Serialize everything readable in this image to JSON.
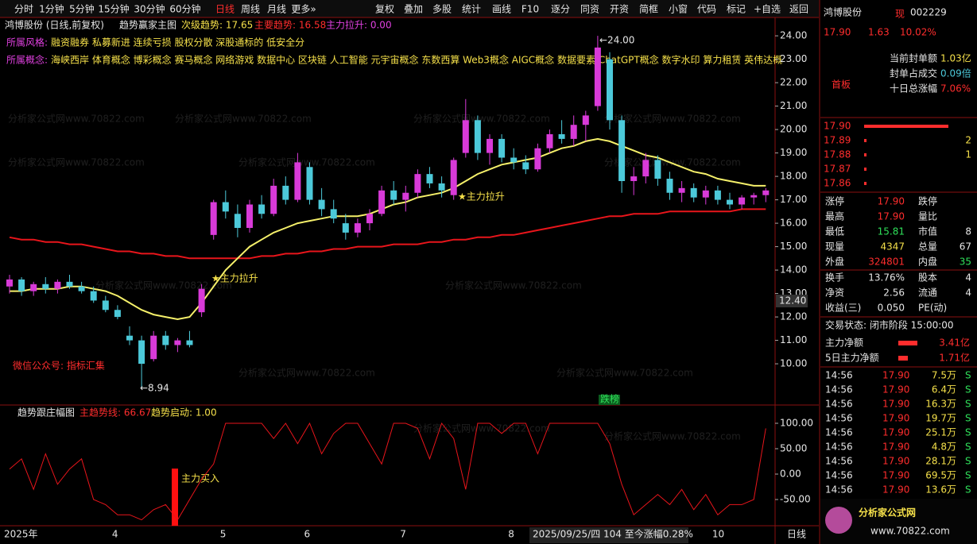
{
  "toolbar": {
    "left": [
      "分时",
      "1分钟",
      "5分钟",
      "15分钟",
      "30分钟",
      "60分钟",
      "日线",
      "周线",
      "月线",
      "更多»"
    ],
    "right": [
      "复权",
      "叠加",
      "多股",
      "统计",
      "画线",
      "F10",
      "逐分",
      "同资",
      "开资",
      "简框",
      "小窗",
      "代码",
      "标记",
      "+自选",
      "返回"
    ]
  },
  "chart_data": [
    {
      "type": "candlestick",
      "title": "鸿博股份 (日线,前复权)",
      "indicator": "趋势赢家主图",
      "legend": [
        "次级趋势: 17.65",
        "主要趋势: 16.58",
        "主力拉升: 0.00"
      ],
      "style_label": "所属风格:",
      "style": "融资融券 私募新进 连续亏损 股权分散 深股通标的 低安全分",
      "concept_label": "所属概念:",
      "concept": "海峡西岸 体育概念 博彩概念 赛马概念 网络游戏 数据中心 区块链 人工智能 元宇宙概念 东数西算 Web3概念 AIGC概念 数据要素 ChatGPT概念 数字水印 算力租赁 英伟达概",
      "categories": [
        "2025年",
        null,
        null,
        null,
        null,
        null,
        null,
        null,
        null,
        "4",
        null,
        null,
        null,
        null,
        null,
        null,
        null,
        null,
        "5",
        null,
        null,
        null,
        null,
        null,
        null,
        "6",
        null,
        null,
        null,
        null,
        null,
        null,
        null,
        "7",
        null,
        null,
        null,
        null,
        null,
        null,
        null,
        null,
        "8",
        null,
        null,
        null,
        null,
        null,
        null,
        null,
        null,
        null,
        null,
        null,
        null,
        null,
        null,
        null,
        null,
        "10",
        null,
        null,
        null,
        null
      ],
      "ohlc": [
        [
          13.3,
          13.8,
          13.0,
          13.6
        ],
        [
          13.6,
          13.7,
          12.9,
          13.1
        ],
        [
          13.1,
          13.5,
          12.9,
          13.4
        ],
        [
          13.4,
          13.7,
          13.0,
          13.2
        ],
        [
          13.2,
          13.6,
          13.0,
          13.5
        ],
        [
          13.5,
          13.8,
          13.2,
          13.3
        ],
        [
          13.3,
          13.5,
          13.0,
          13.1
        ],
        [
          13.1,
          13.3,
          12.6,
          12.7
        ],
        [
          12.7,
          12.9,
          12.2,
          12.3
        ],
        [
          12.3,
          12.5,
          11.9,
          12.0
        ],
        [
          11.2,
          11.6,
          10.8,
          11.0
        ],
        [
          11.0,
          11.2,
          8.94,
          10.0
        ],
        [
          10.2,
          11.4,
          10.1,
          11.2
        ],
        [
          11.2,
          11.4,
          10.6,
          10.8
        ],
        [
          10.8,
          11.1,
          10.5,
          11.0
        ],
        [
          11.0,
          11.4,
          10.7,
          10.8
        ],
        [
          12.2,
          13.4,
          12.0,
          13.2
        ],
        [
          15.5,
          17.0,
          15.3,
          16.9
        ],
        [
          16.9,
          17.4,
          16.2,
          16.5
        ],
        [
          16.4,
          16.8,
          15.4,
          15.8
        ],
        [
          15.8,
          17.0,
          15.6,
          16.8
        ],
        [
          16.8,
          17.2,
          16.2,
          16.4
        ],
        [
          16.4,
          17.9,
          16.3,
          17.6
        ],
        [
          17.6,
          18.0,
          16.8,
          17.0
        ],
        [
          17.0,
          19.0,
          16.9,
          18.6
        ],
        [
          18.4,
          18.6,
          16.8,
          17.0
        ],
        [
          17.0,
          17.5,
          16.3,
          16.6
        ],
        [
          16.6,
          17.0,
          16.0,
          16.2
        ],
        [
          16.0,
          16.4,
          15.3,
          15.6
        ],
        [
          15.6,
          16.2,
          15.4,
          16.0
        ],
        [
          16.0,
          16.6,
          15.7,
          16.4
        ],
        [
          16.4,
          17.6,
          16.3,
          17.4
        ],
        [
          17.4,
          17.8,
          16.8,
          17.0
        ],
        [
          17.0,
          17.6,
          16.5,
          17.3
        ],
        [
          17.3,
          18.3,
          17.1,
          18.1
        ],
        [
          18.1,
          18.4,
          17.5,
          17.7
        ],
        [
          17.7,
          18.0,
          17.1,
          17.4
        ],
        [
          17.2,
          18.8,
          17.0,
          18.7
        ],
        [
          19.0,
          21.3,
          18.8,
          20.4
        ],
        [
          20.4,
          20.6,
          18.7,
          19.0
        ],
        [
          19.0,
          19.8,
          18.5,
          19.6
        ],
        [
          19.6,
          19.8,
          18.6,
          18.8
        ],
        [
          18.8,
          19.2,
          18.3,
          18.6
        ],
        [
          18.6,
          18.9,
          18.1,
          18.3
        ],
        [
          18.3,
          19.4,
          18.2,
          19.2
        ],
        [
          19.2,
          20.0,
          19.0,
          19.8
        ],
        [
          19.8,
          20.4,
          19.4,
          19.6
        ],
        [
          19.6,
          20.6,
          19.3,
          20.2
        ],
        [
          20.2,
          20.8,
          19.5,
          20.6
        ],
        [
          21.0,
          24.0,
          20.8,
          23.5
        ],
        [
          23.0,
          23.3,
          20.0,
          20.4
        ],
        [
          20.4,
          20.6,
          17.3,
          17.8
        ],
        [
          17.8,
          18.4,
          17.2,
          18.0
        ],
        [
          18.0,
          19.0,
          17.7,
          18.7
        ],
        [
          18.7,
          18.9,
          17.6,
          17.9
        ],
        [
          17.9,
          18.2,
          17.0,
          17.3
        ],
        [
          17.3,
          17.8,
          16.9,
          17.5
        ],
        [
          17.5,
          17.7,
          16.9,
          17.1
        ],
        [
          17.1,
          17.6,
          16.8,
          17.4
        ],
        [
          17.4,
          17.6,
          16.8,
          17.0
        ],
        [
          17.0,
          17.3,
          16.6,
          16.8
        ],
        [
          16.8,
          17.2,
          16.6,
          17.1
        ],
        [
          17.1,
          17.3,
          16.8,
          17.2
        ],
        [
          17.2,
          17.5,
          16.9,
          17.4
        ]
      ],
      "up_color": "#d83ad8",
      "down_color": "#4cc9d9",
      "ma_short": [
        13.1,
        13.1,
        13.2,
        13.2,
        13.2,
        13.3,
        13.3,
        13.2,
        13.1,
        12.9,
        12.6,
        12.3,
        12.1,
        12.0,
        11.9,
        12.0,
        12.6,
        13.3,
        14.0,
        14.5,
        15.0,
        15.3,
        15.6,
        15.8,
        16.0,
        16.1,
        16.2,
        16.3,
        16.3,
        16.3,
        16.4,
        16.6,
        16.8,
        16.9,
        17.1,
        17.2,
        17.3,
        17.5,
        17.8,
        18.1,
        18.3,
        18.5,
        18.6,
        18.7,
        18.8,
        19.0,
        19.2,
        19.3,
        19.5,
        19.6,
        19.5,
        19.3,
        19.1,
        18.9,
        18.8,
        18.6,
        18.4,
        18.2,
        18.1,
        17.9,
        17.8,
        17.7,
        17.6,
        17.6
      ],
      "ma_short_color": "#f5f06a",
      "ma_long": [
        15.4,
        15.3,
        15.3,
        15.2,
        15.2,
        15.1,
        15.1,
        15.0,
        14.9,
        14.8,
        14.8,
        14.7,
        14.7,
        14.6,
        14.6,
        14.5,
        14.5,
        14.5,
        14.5,
        14.5,
        14.5,
        14.6,
        14.6,
        14.7,
        14.7,
        14.8,
        14.8,
        14.9,
        14.9,
        15.0,
        15.0,
        15.0,
        15.1,
        15.1,
        15.1,
        15.2,
        15.2,
        15.3,
        15.3,
        15.4,
        15.4,
        15.5,
        15.5,
        15.6,
        15.7,
        15.8,
        15.9,
        16.0,
        16.1,
        16.2,
        16.3,
        16.3,
        16.4,
        16.4,
        16.4,
        16.5,
        16.5,
        16.5,
        16.5,
        16.5,
        16.5,
        16.6,
        16.6,
        16.6
      ],
      "ma_long_color": "#e8151b",
      "ylim": [
        8.24,
        24.58
      ],
      "yticks": [
        {
          "value": 10,
          "label": "10.00"
        },
        {
          "value": 11,
          "label": "11.00"
        },
        {
          "value": 12,
          "label": "12.00"
        },
        {
          "value": 13,
          "label": "13.00"
        },
        {
          "value": 14,
          "label": "14.00"
        },
        {
          "value": 15,
          "label": "15.00"
        },
        {
          "value": 16,
          "label": "16.00"
        },
        {
          "value": 17,
          "label": "17.00"
        },
        {
          "value": 18,
          "label": "18.00"
        },
        {
          "value": 19,
          "label": "19.00"
        },
        {
          "value": 20,
          "label": "20.00"
        },
        {
          "value": 21,
          "label": "21.00"
        },
        {
          "value": 22,
          "label": "22.00"
        },
        {
          "value": 23,
          "label": "23.00"
        },
        {
          "value": 24,
          "label": "24.00"
        }
      ],
      "annotations": {
        "high": "←24.00",
        "low": "←8.94",
        "pull1": "★主力拉升",
        "pull2": "★主力拉升",
        "wechat": "微信公众号: 指标汇集",
        "cursor_price": "12.40",
        "tag": "跌榜",
        "date_info": "2025/09/25/四 104 至今涨幅0.28%"
      }
    },
    {
      "type": "line",
      "title": "趋势跟庄幅图",
      "legend": [
        "主趋势线: 66.67",
        "趋势启动: 1.00"
      ],
      "annotation": "主力买入",
      "color": "#e8151b",
      "values": [
        10,
        30,
        -30,
        40,
        -20,
        10,
        30,
        -50,
        -60,
        -80,
        -80,
        -90,
        -70,
        -60,
        -90,
        -50,
        -10,
        20,
        100,
        100,
        100,
        100,
        70,
        100,
        60,
        100,
        40,
        80,
        100,
        100,
        60,
        20,
        100,
        100,
        90,
        30,
        100,
        70,
        -30,
        100,
        100,
        80,
        100,
        100,
        40,
        100,
        100,
        100,
        100,
        100,
        60,
        -20,
        -80,
        -60,
        -40,
        -60,
        -30,
        -70,
        -40,
        -80,
        -60,
        -60,
        -50,
        90
      ],
      "ylim": [
        -101.6,
        132.8
      ],
      "yticks": [
        {
          "value": 100,
          "label": "100.00"
        },
        {
          "value": 50,
          "label": "50.00"
        },
        {
          "value": 0,
          "label": "0.00"
        },
        {
          "value": -50,
          "label": "-50.00"
        }
      ]
    }
  ],
  "period": "日线",
  "watermark": "分析家公式网www.70822.com",
  "panel": {
    "name": "鸿博股份",
    "flag": "现",
    "code": "002229",
    "price": "17.90",
    "change": "1.63",
    "pct": "10.02%",
    "seal": [
      [
        "当前封单额",
        "1.03亿"
      ],
      [
        "封单占成交",
        "0.09倍"
      ],
      [
        "十日总涨幅",
        "7.06%"
      ]
    ],
    "board": "首板",
    "book": [
      [
        "17.90",
        ""
      ],
      [
        "17.89",
        "2"
      ],
      [
        "17.88",
        "1"
      ],
      [
        "17.87",
        ""
      ],
      [
        "17.86",
        ""
      ]
    ],
    "stats": [
      [
        "涨停",
        "17.90",
        "跌停",
        ""
      ],
      [
        "最高",
        "17.90",
        "量比",
        ""
      ],
      [
        "最低",
        "15.81",
        "市值",
        "8"
      ],
      [
        "现量",
        "4347",
        "总量",
        "67"
      ],
      [
        "外盘",
        "324801",
        "内盘",
        "35"
      ],
      [
        "换手",
        "13.76%",
        "股本",
        "4"
      ],
      [
        "净资",
        "2.56",
        "流通",
        "4"
      ],
      [
        "收益(三)",
        "0.050",
        "PE(动)",
        ""
      ]
    ],
    "status": "交易状态: 闭市阶段 15:00:00",
    "flow": [
      [
        "主力净额",
        "3.41亿"
      ],
      [
        "5日主力净额",
        "1.71亿"
      ]
    ],
    "ticks": [
      [
        "14:56",
        "17.90",
        "7.5万",
        "S"
      ],
      [
        "14:56",
        "17.90",
        "6.4万",
        "S"
      ],
      [
        "14:56",
        "17.90",
        "16.3万",
        "S"
      ],
      [
        "14:56",
        "17.90",
        "19.7万",
        "S"
      ],
      [
        "14:56",
        "17.90",
        "25.1万",
        "S"
      ],
      [
        "14:56",
        "17.90",
        "4.8万",
        "S"
      ],
      [
        "14:56",
        "17.90",
        "28.1万",
        "S"
      ],
      [
        "14:56",
        "17.90",
        "69.5万",
        "S"
      ],
      [
        "14:56",
        "17.90",
        "13.6万",
        "S"
      ]
    ],
    "logo": "分析家公式网",
    "logo_url": "www.70822.com"
  }
}
